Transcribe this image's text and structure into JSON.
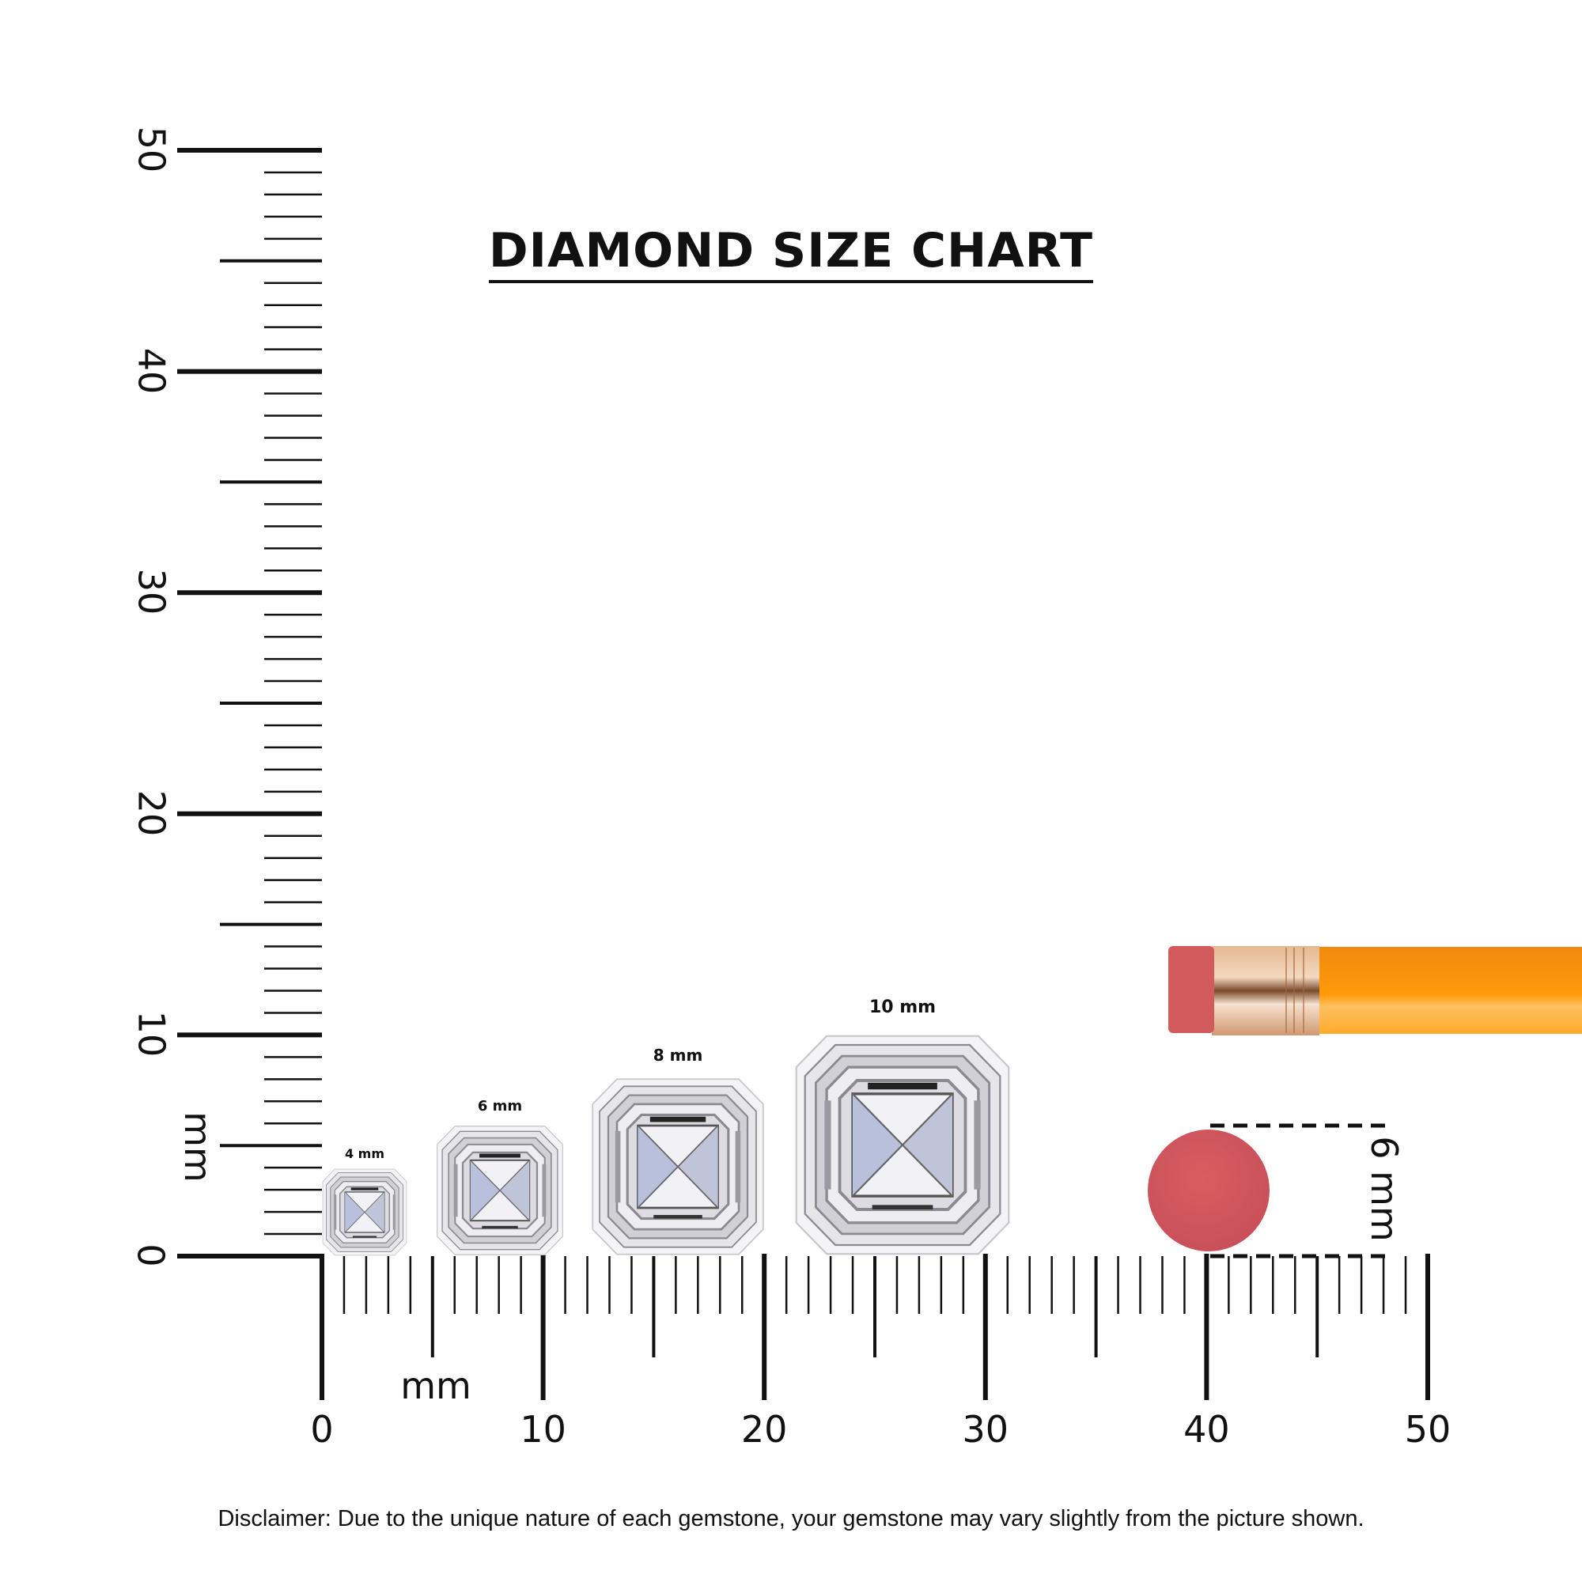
{
  "title": "DIAMOND SIZE CHART",
  "unit_label_x": "mm",
  "unit_label_y": "mm",
  "x_axis": {
    "range": [
      0,
      50
    ],
    "major_step": 10,
    "mid_step": 5,
    "minor_step": 1,
    "tick_labels": [
      "0",
      "10",
      "20",
      "30",
      "40",
      "50"
    ]
  },
  "y_axis": {
    "range": [
      0,
      50
    ],
    "major_step": 10,
    "mid_step": 5,
    "minor_step": 1,
    "tick_labels": [
      "0",
      "10",
      "20",
      "30",
      "40",
      "50"
    ]
  },
  "diamonds": [
    {
      "label": "4 mm",
      "size_mm": 4
    },
    {
      "label": "6 mm",
      "size_mm": 6
    },
    {
      "label": "8 mm",
      "size_mm": 8
    },
    {
      "label": "10 mm",
      "size_mm": 10
    }
  ],
  "eraser_label": "6 mm",
  "colors": {
    "eraser": "#d35a5c",
    "pencil": "#ff9a10",
    "ferrule": "#d9a27a",
    "ink": "#111111"
  },
  "disclaimer": "Disclaimer: Due to the unique nature of each gemstone, your gemstone may vary slightly from the picture shown."
}
